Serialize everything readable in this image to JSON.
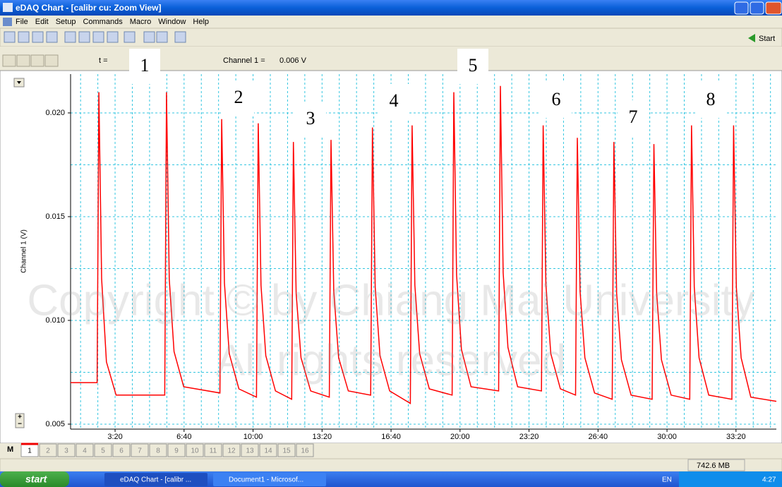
{
  "window": {
    "title": "eDAQ Chart - [calibr cu: Zoom View]"
  },
  "menu": [
    "File",
    "Edit",
    "Setup",
    "Commands",
    "Macro",
    "Window",
    "Help"
  ],
  "toolbar": {
    "start": "Start"
  },
  "readout": {
    "t_label": "t =",
    "channel_label": "Channel 1 =",
    "channel_value": "0.006 V"
  },
  "chart_data": {
    "type": "line",
    "y_label": "Channel 1 (V)",
    "color": "#ff0000",
    "grid": true,
    "annotations": [
      "1",
      "2",
      "3",
      "4",
      "5",
      "6",
      "7",
      "8"
    ],
    "xlim": [
      71,
      2117
    ],
    "xticks": [
      {
        "value": 200,
        "label": "3:20"
      },
      {
        "value": 400,
        "label": "6:40"
      },
      {
        "value": 600,
        "label": "10:00"
      },
      {
        "value": 800,
        "label": "13:20"
      },
      {
        "value": 1000,
        "label": "16:40"
      },
      {
        "value": 1200,
        "label": "20:00"
      },
      {
        "value": 1400,
        "label": "23:20"
      },
      {
        "value": 1600,
        "label": "26:40"
      },
      {
        "value": 1800,
        "label": "30:00"
      },
      {
        "value": 2000,
        "label": "33:20"
      }
    ],
    "ylim": [
      0.00476,
      0.02187
    ],
    "yticks": [
      {
        "value": 0.005,
        "label": "0.005"
      },
      {
        "value": 0.01,
        "label": "0.010"
      },
      {
        "value": 0.015,
        "label": "0.015"
      },
      {
        "value": 0.02,
        "label": "0.020"
      }
    ],
    "x": [
      71,
      148,
      153,
      161,
      175,
      203,
      344,
      349,
      357,
      371,
      399,
      504,
      509,
      517,
      531,
      559,
      610,
      615,
      623,
      637,
      665,
      712,
      717,
      725,
      739,
      767,
      821,
      826,
      834,
      848,
      876,
      941,
      946,
      954,
      968,
      996,
      1056,
      1061,
      1069,
      1083,
      1111,
      1177,
      1182,
      1190,
      1204,
      1232,
      1312,
      1317,
      1325,
      1339,
      1367,
      1436,
      1441,
      1449,
      1463,
      1491,
      1535,
      1540,
      1548,
      1562,
      1590,
      1641,
      1646,
      1654,
      1668,
      1696,
      1757,
      1762,
      1770,
      1784,
      1812,
      1866,
      1871,
      1879,
      1893,
      1921,
      1988,
      1993,
      2001,
      2015,
      2043,
      2117
    ],
    "values": [
      0.007,
      0.007,
      0.021,
      0.012,
      0.008,
      0.0064,
      0.0064,
      0.021,
      0.012,
      0.0085,
      0.0068,
      0.0065,
      0.0197,
      0.0118,
      0.0084,
      0.0067,
      0.0063,
      0.0195,
      0.0117,
      0.0083,
      0.0066,
      0.0062,
      0.0186,
      0.0113,
      0.0082,
      0.0066,
      0.0063,
      0.0187,
      0.0114,
      0.0082,
      0.0066,
      0.0064,
      0.0193,
      0.0116,
      0.0083,
      0.0066,
      0.006,
      0.0194,
      0.0117,
      0.0084,
      0.0067,
      0.0064,
      0.021,
      0.0122,
      0.0086,
      0.0068,
      0.0066,
      0.0213,
      0.0123,
      0.0087,
      0.0068,
      0.0066,
      0.0194,
      0.0117,
      0.0084,
      0.0067,
      0.0064,
      0.0188,
      0.0114,
      0.0082,
      0.0065,
      0.0062,
      0.0186,
      0.0113,
      0.0081,
      0.0064,
      0.0062,
      0.0185,
      0.0113,
      0.0081,
      0.0064,
      0.0062,
      0.0194,
      0.0116,
      0.0082,
      0.0064,
      0.0062,
      0.0194,
      0.0116,
      0.0082,
      0.0063,
      0.0061
    ]
  },
  "channel_tabs": [
    "1",
    "2",
    "3",
    "4",
    "5",
    "6",
    "7",
    "8",
    "9",
    "10",
    "11",
    "12",
    "13",
    "14",
    "15",
    "16"
  ],
  "status": {
    "memory": "742.6 MB"
  },
  "watermark": [
    "Copyright © by Chiang Mai University",
    "All rights reserved"
  ],
  "taskbar": {
    "start": "start",
    "tasks": [
      "eDAQ Chart - [calibr ...",
      "Document1 - Microsof..."
    ],
    "language": "EN",
    "clock": "4:27"
  }
}
